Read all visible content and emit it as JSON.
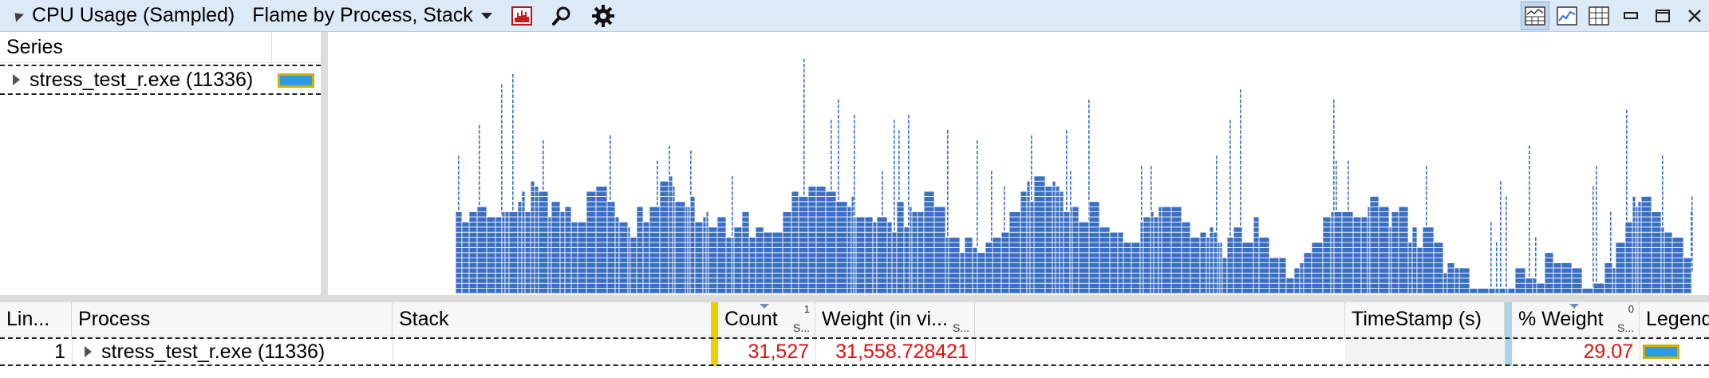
{
  "titlebar": {
    "title": "CPU Usage (Sampled)",
    "preset": "Flame by Process, Stack",
    "icons": [
      "graph-type-icon",
      "search-icon",
      "settings-gear-icon"
    ],
    "view_icons": [
      "graph-and-table-icon",
      "graph-only-icon",
      "table-only-icon",
      "minimize-icon",
      "maximize-icon",
      "close-icon"
    ]
  },
  "series": {
    "header": "Series",
    "items": [
      {
        "label": "stress_test_r.exe (11336)",
        "color": "#2e9be0",
        "border": "#c8b400"
      }
    ]
  },
  "flame": {
    "fill_color": "#3a6fc4",
    "stroke_color": "#ffffff"
  },
  "table": {
    "columns": {
      "line": "Lin...",
      "process": "Process",
      "stack": "Stack",
      "count": "Count",
      "count_sort_num": "1",
      "count_sort_label": "S...",
      "weight": "Weight (in vi...",
      "weight_sort_label": "S...",
      "timestamp": "TimeStamp (s)",
      "pct_weight": "% Weight",
      "pct_sort_num": "0",
      "pct_sort_label": "S...",
      "legend": "Legend"
    },
    "rows": [
      {
        "line": "1",
        "process": "stress_test_r.exe (11336)",
        "stack": "",
        "count": "31,527",
        "weight": "31,558.728421",
        "timestamp": "",
        "pct_weight": "29.07",
        "legend_color": "#2e9be0"
      }
    ]
  }
}
